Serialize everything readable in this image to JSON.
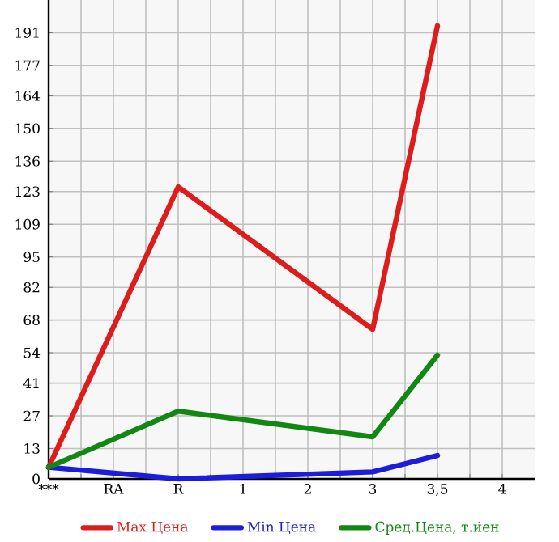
{
  "chart_data": {
    "type": "line",
    "categories": [
      "***",
      "RA",
      "R",
      "1",
      "2",
      "3",
      "3,5",
      "4"
    ],
    "series": [
      {
        "name": "Max Цена",
        "color": "#dd1c1c",
        "values": [
          5,
          null,
          125,
          null,
          null,
          64,
          194,
          null
        ]
      },
      {
        "name": "Min Цена",
        "color": "#1c1cdd",
        "values": [
          5,
          null,
          0,
          null,
          null,
          3,
          10,
          null
        ]
      },
      {
        "name": "Сред.Цена, т.йен",
        "color": "#118811",
        "values": [
          5,
          null,
          29,
          null,
          null,
          18,
          53,
          null
        ]
      }
    ],
    "ylim": [
      0,
      205
    ],
    "yticks": [
      0,
      13,
      27,
      41,
      54,
      68,
      82,
      95,
      109,
      123,
      136,
      150,
      164,
      177,
      191
    ],
    "grid": true,
    "legend": "bottom",
    "marker": "none",
    "line_style": "solid"
  }
}
